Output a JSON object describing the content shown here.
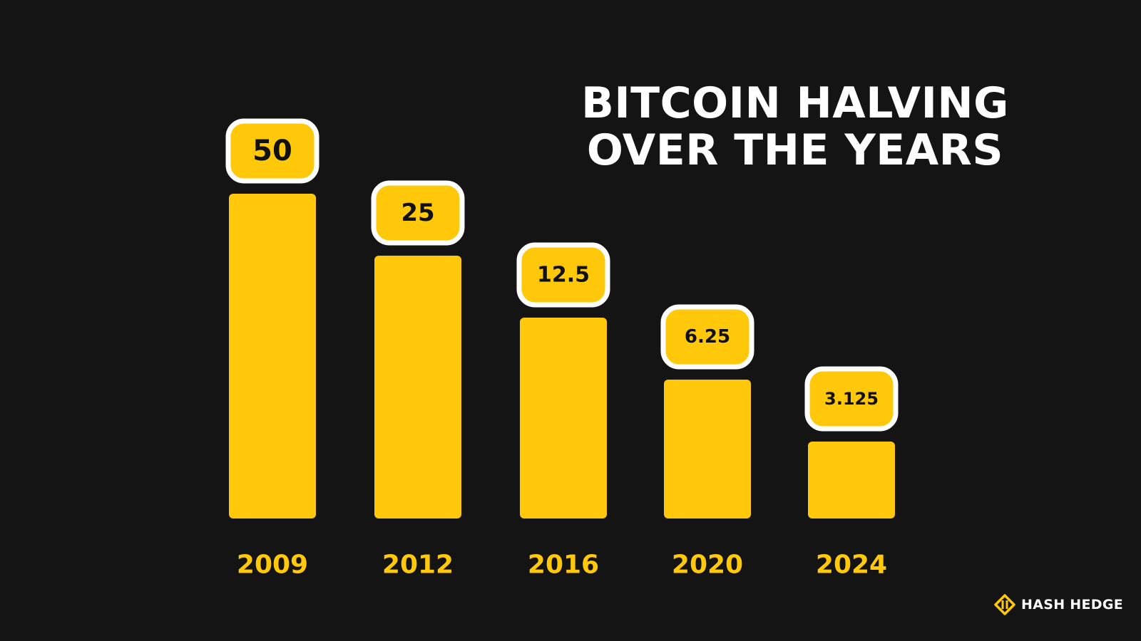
{
  "title_lines": [
    "BITCOIN HALVING",
    "OVER THE YEARS"
  ],
  "brand": {
    "name": "HASH HEDGE",
    "icon": "hash-hedge-logo-icon"
  },
  "colors": {
    "background": "#141414",
    "bar": "#FFC80A",
    "label_box_border": "#FFFFFF",
    "year_text": "#FFC80A",
    "value_text": "#111111",
    "title_text": "#FFFFFF"
  },
  "chart_data": {
    "type": "bar",
    "title": "BITCOIN HALVING OVER THE YEARS",
    "categories": [
      "2009",
      "2012",
      "2016",
      "2020",
      "2024"
    ],
    "values": [
      50,
      25,
      12.5,
      6.25,
      3.125
    ],
    "value_labels": [
      "50",
      "25",
      "12.5",
      "6.25",
      "3.125"
    ],
    "xlabel": "",
    "ylabel": "",
    "grid": false,
    "legend": "none"
  }
}
